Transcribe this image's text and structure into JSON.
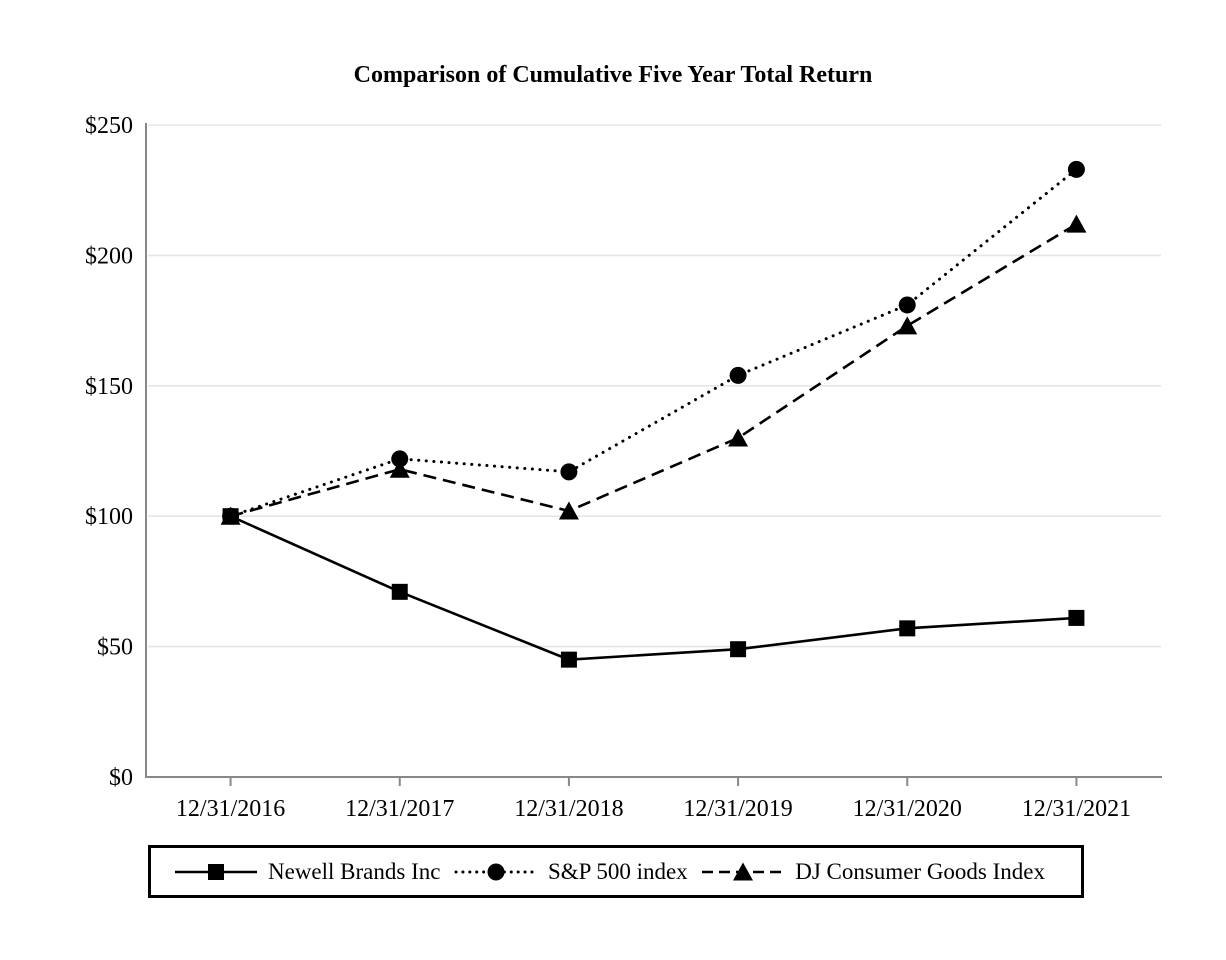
{
  "chart_data": {
    "type": "line",
    "title": "Comparison of Cumulative Five Year Total Return",
    "categories": [
      "12/31/2016",
      "12/31/2017",
      "12/31/2018",
      "12/31/2019",
      "12/31/2020",
      "12/31/2021"
    ],
    "series": [
      {
        "name": "Newell Brands Inc",
        "marker": "square",
        "line_style": "solid",
        "values": [
          100,
          71,
          45,
          49,
          57,
          61
        ]
      },
      {
        "name": "S&P 500 index",
        "marker": "circle",
        "line_style": "dotted",
        "values": [
          100,
          122,
          117,
          154,
          181,
          233
        ]
      },
      {
        "name": "DJ Consumer Goods Index",
        "marker": "triangle",
        "line_style": "dashed",
        "values": [
          100,
          118,
          102,
          130,
          173,
          212
        ]
      }
    ],
    "xlabel": "",
    "ylabel": "",
    "ylim": [
      0,
      250
    ],
    "y_ticks": [
      0,
      50,
      100,
      150,
      200,
      250
    ],
    "y_tick_labels": [
      "$0",
      "$50",
      "$100",
      "$150",
      "$200",
      "$250"
    ],
    "grid": "horizontal",
    "legend_position": "bottom",
    "colors": {
      "series": "#000000",
      "axis": "#888888",
      "gridline": "#e5e5e5"
    }
  }
}
